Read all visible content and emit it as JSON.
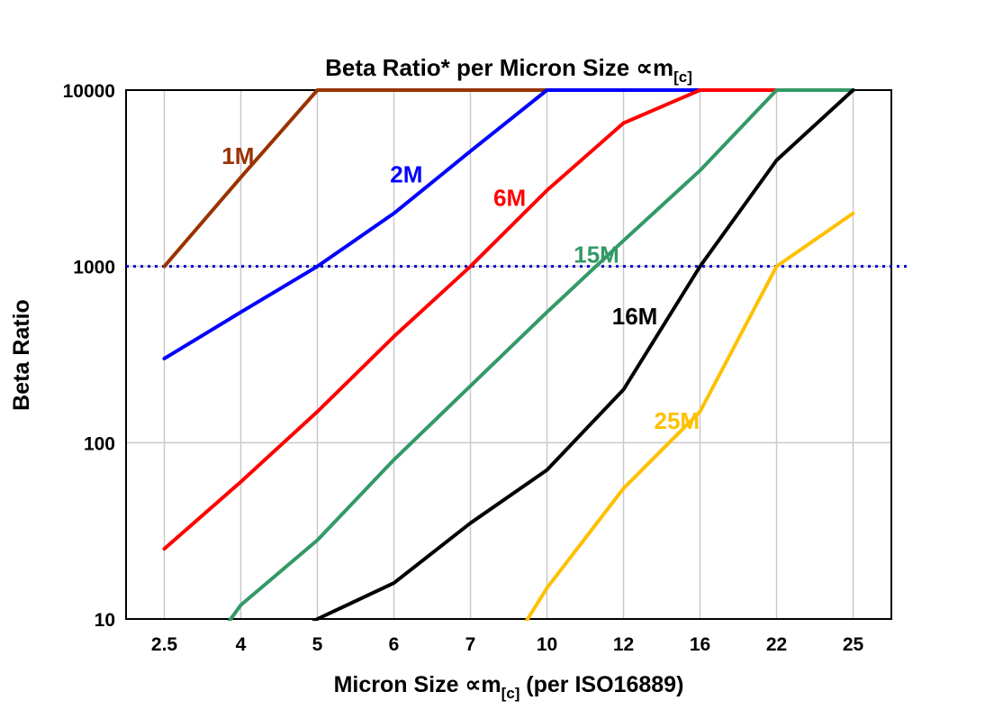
{
  "chart": {
    "title": {
      "prefix": "Beta Ratio* per Micron Size ",
      "symbol": "∝m",
      "sub": "[c]"
    },
    "y_axis_title": "Beta Ratio",
    "x_axis_title": {
      "prefix": "Micron Size ",
      "symbol": "∝m",
      "sub": "[c]",
      "suffix": " (per ISO16889)"
    }
  },
  "chart_data": {
    "type": "line",
    "title": "Beta Ratio* per Micron Size ∝m[c]",
    "xlabel": "Micron Size ∝m[c] (per ISO16889)",
    "ylabel": "Beta Ratio",
    "x_categories": [
      "2.5",
      "4",
      "5",
      "6",
      "7",
      "10",
      "12",
      "16",
      "22",
      "25"
    ],
    "y_ticks": [
      10,
      100,
      1000,
      10000
    ],
    "y_scale": "log",
    "ylim": [
      10,
      10000
    ],
    "grid": true,
    "legend_position": "inline-labels",
    "reference_line": {
      "y": 1000,
      "style": "dotted",
      "color": "#0000CC"
    },
    "series": [
      {
        "name": "1M",
        "color": "#993300",
        "values": [
          1000,
          3200,
          10000,
          10000,
          10000,
          10000,
          10000,
          10000,
          10000,
          10000
        ]
      },
      {
        "name": "2M",
        "color": "#0000FF",
        "values": [
          300,
          550,
          1000,
          2000,
          4500,
          10000,
          10000,
          10000,
          10000,
          10000
        ]
      },
      {
        "name": "6M",
        "color": "#FF0000",
        "values": [
          25,
          60,
          150,
          400,
          1000,
          2700,
          6500,
          10000,
          10000,
          10000
        ]
      },
      {
        "name": "15M",
        "color": "#339966",
        "values": [
          3,
          12,
          28,
          80,
          210,
          550,
          1400,
          3500,
          10000,
          10000
        ]
      },
      {
        "name": "16M",
        "color": "#000000",
        "values": [
          2,
          5,
          10,
          16,
          35,
          70,
          200,
          1000,
          4000,
          10000
        ]
      },
      {
        "name": "25M",
        "color": "#FFC000",
        "values": [
          null,
          null,
          null,
          null,
          3,
          15,
          55,
          150,
          1000,
          2000
        ]
      }
    ],
    "labels": [
      {
        "text": "1M",
        "color": "#993300",
        "xi": 0.75,
        "y": 3800
      },
      {
        "text": "2M",
        "color": "#0000FF",
        "xi": 2.95,
        "y": 3000
      },
      {
        "text": "6M",
        "color": "#FF0000",
        "xi": 4.3,
        "y": 2200
      },
      {
        "text": "15M",
        "color": "#339966",
        "xi": 5.35,
        "y": 1050
      },
      {
        "text": "16M",
        "color": "#000000",
        "xi": 5.85,
        "y": 470
      },
      {
        "text": "25M",
        "color": "#FFC000",
        "xi": 6.4,
        "y": 120
      }
    ]
  },
  "colors": {
    "grid": "#C9C9C9",
    "axis": "#000000",
    "background": "#FFFFFF"
  }
}
